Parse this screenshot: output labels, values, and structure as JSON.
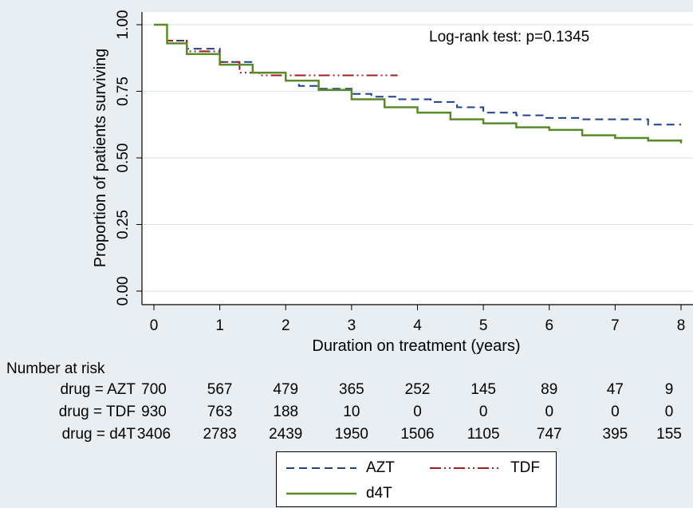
{
  "chart_data": {
    "type": "line",
    "ylabel": "Proportion of patients surviving",
    "xlabel": "Duration on treatment (years)",
    "xlim": [
      0,
      8
    ],
    "ylim": [
      0,
      1
    ],
    "xticks": [
      "0",
      "1",
      "2",
      "3",
      "4",
      "5",
      "6",
      "7",
      "8"
    ],
    "yticks": [
      "0.00",
      "0.25",
      "0.50",
      "0.75",
      "1.00"
    ],
    "grid": "horizontal",
    "annotation": "Log-rank test: p=0.1345",
    "series": [
      {
        "name": "AZT",
        "color": "#1f3f8c",
        "dash": "dashed",
        "x": [
          0,
          0.2,
          0.5,
          1.0,
          1.5,
          2.0,
          2.2,
          2.5,
          3.0,
          3.3,
          3.7,
          4.2,
          4.6,
          5.0,
          5.5,
          5.9,
          6.5,
          7.0,
          7.45,
          7.5,
          8.0
        ],
        "y": [
          1.0,
          0.94,
          0.91,
          0.86,
          0.82,
          0.79,
          0.77,
          0.76,
          0.74,
          0.73,
          0.72,
          0.71,
          0.69,
          0.67,
          0.66,
          0.65,
          0.645,
          0.645,
          0.645,
          0.625,
          0.625
        ]
      },
      {
        "name": "TDF",
        "color": "#a01e1e",
        "dash": "dash-dot",
        "x": [
          0,
          0.2,
          0.5,
          1.0,
          1.3,
          1.6,
          2.0,
          2.5,
          3.0,
          3.5,
          3.7
        ],
        "y": [
          1.0,
          0.94,
          0.9,
          0.86,
          0.82,
          0.81,
          0.81,
          0.81,
          0.81,
          0.81,
          0.81
        ]
      },
      {
        "name": "d4T",
        "color": "#5a8a28",
        "dash": "solid",
        "x": [
          0,
          0.2,
          0.5,
          1.0,
          1.5,
          2.0,
          2.5,
          3.0,
          3.5,
          4.0,
          4.5,
          5.0,
          5.5,
          6.0,
          6.5,
          7.0,
          7.5,
          8.0
        ],
        "y": [
          1.0,
          0.93,
          0.89,
          0.85,
          0.82,
          0.79,
          0.755,
          0.72,
          0.69,
          0.67,
          0.645,
          0.63,
          0.615,
          0.605,
          0.585,
          0.575,
          0.565,
          0.555
        ]
      }
    ]
  },
  "risk_table": {
    "title": "Number at risk",
    "rows": [
      {
        "label": "drug = AZT",
        "values": [
          "700",
          "567",
          "479",
          "365",
          "252",
          "145",
          "89",
          "47",
          "9"
        ]
      },
      {
        "label": "drug = TDF",
        "values": [
          "930",
          "763",
          "188",
          "10",
          "0",
          "0",
          "0",
          "0",
          "0"
        ]
      },
      {
        "label": "drug = d4T",
        "values": [
          "3406",
          "2783",
          "2439",
          "1950",
          "1506",
          "1105",
          "747",
          "395",
          "155"
        ]
      }
    ]
  },
  "legend": {
    "items": [
      {
        "label": "AZT"
      },
      {
        "label": "TDF"
      },
      {
        "label": "d4T"
      }
    ]
  }
}
